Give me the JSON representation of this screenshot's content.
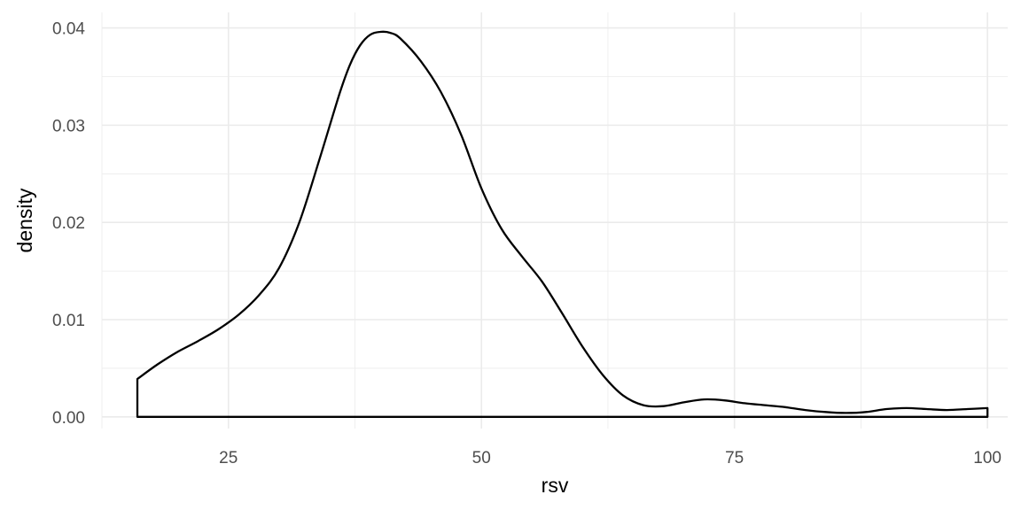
{
  "chart_data": {
    "type": "area",
    "title": "",
    "xlabel": "rsv",
    "ylabel": "density",
    "xlim": [
      12.5,
      102
    ],
    "ylim": [
      -0.0012,
      0.0416
    ],
    "x_ticks": [
      25,
      50,
      75,
      100
    ],
    "x_tick_labels": [
      "25",
      "50",
      "75",
      "100"
    ],
    "x_minor_ticks": [
      12.5,
      37.5,
      62.5,
      87.5
    ],
    "y_ticks": [
      0,
      0.01,
      0.02,
      0.03,
      0.04
    ],
    "y_tick_labels": [
      "0.00",
      "0.01",
      "0.02",
      "0.03",
      "0.04"
    ],
    "y_minor_ticks": [
      0.005,
      0.015,
      0.025,
      0.035
    ],
    "grid": true,
    "line_color": "#000000",
    "fill": "none",
    "series": [
      {
        "x": [
          16,
          18,
          20,
          22,
          24,
          26,
          28,
          30,
          32,
          34,
          36,
          37,
          38,
          39,
          40,
          41,
          42,
          44,
          46,
          48,
          50,
          52,
          54,
          56,
          58,
          60,
          62,
          64,
          66,
          68,
          70,
          72,
          74,
          76,
          78,
          80,
          82,
          84,
          86,
          88,
          90,
          92,
          94,
          96,
          98,
          100
        ],
        "y": [
          0.0039,
          0.0054,
          0.0067,
          0.0078,
          0.009,
          0.0105,
          0.0125,
          0.0153,
          0.02,
          0.0265,
          0.0333,
          0.0362,
          0.0382,
          0.0393,
          0.0396,
          0.0395,
          0.0389,
          0.0366,
          0.0334,
          0.029,
          0.0235,
          0.0193,
          0.0165,
          0.0139,
          0.0106,
          0.0072,
          0.0043,
          0.0022,
          0.0012,
          0.0011,
          0.0015,
          0.0018,
          0.0017,
          0.0014,
          0.0012,
          0.001,
          0.0007,
          0.0005,
          0.0004,
          0.0005,
          0.0008,
          0.0009,
          0.0008,
          0.0007,
          0.0008,
          0.0009
        ]
      }
    ]
  }
}
